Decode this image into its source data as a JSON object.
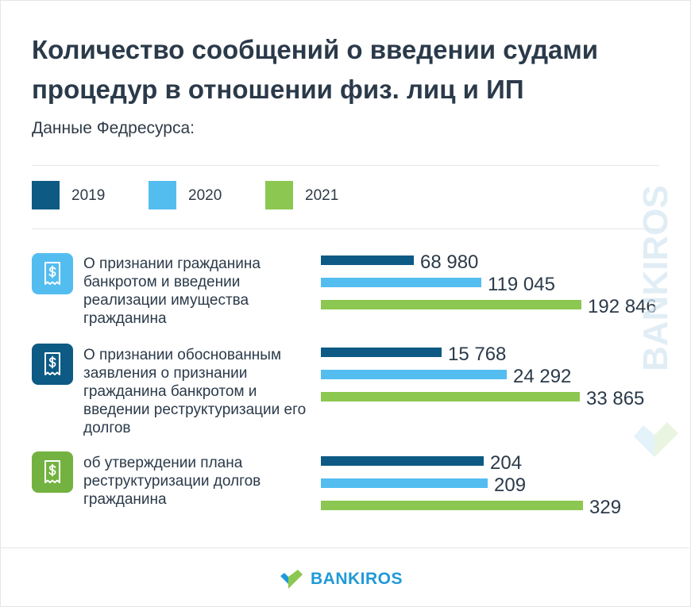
{
  "title": "Количество сообщений о введении судами процедур в отношении физ. лиц и ИП",
  "subtitle": "Данные Федресурса:",
  "brand": "BANKIROS",
  "watermark_text": "BANKIROS",
  "colors": {
    "2019": "#0d5a85",
    "2020": "#53bdf0",
    "2021": "#8cc751"
  },
  "chart_data": {
    "type": "bar",
    "orientation": "horizontal",
    "legend": [
      "2019",
      "2020",
      "2021"
    ],
    "categories": [
      "О признании гражданина банкротом и введении реализации имущества гражданина",
      "О признании обоснованным заявления о признании гражданина банкротом и введении реструктуризации его долгов",
      "об утверждении плана реструктуризации долгов гражданина"
    ],
    "series": [
      {
        "name": "2019",
        "values": [
          68980,
          15768,
          204
        ],
        "labels": [
          "68 980",
          "15 768",
          "204"
        ]
      },
      {
        "name": "2020",
        "values": [
          119045,
          24292,
          209
        ],
        "labels": [
          "119 045",
          "24 292",
          "209"
        ]
      },
      {
        "name": "2021",
        "values": [
          192846,
          33865,
          329
        ],
        "labels": [
          "192 846",
          "33 865",
          "329"
        ]
      }
    ]
  }
}
